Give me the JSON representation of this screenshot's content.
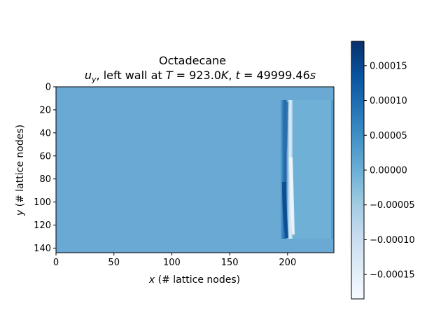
{
  "chart_data": {
    "type": "heatmap",
    "title": {
      "line1": "Octadecane",
      "line2_var": "u",
      "line2_sub": "y",
      "line2_mid": ", left wall at ",
      "line2_T_sym": "T",
      "line2_T_val": " = 923.0",
      "line2_T_unit": "K",
      "line2_t_sym": "t",
      "line2_t_val": " = 49999.46",
      "line2_t_unit": "s"
    },
    "xlabel": {
      "var": "x",
      "text": " (# lattice nodes)"
    },
    "ylabel": {
      "var": "y",
      "text": " (# lattice nodes)"
    },
    "xlim": [
      0,
      240
    ],
    "ylim": [
      144,
      0
    ],
    "xticks": [
      0,
      50,
      100,
      150,
      200
    ],
    "yticks": [
      0,
      20,
      40,
      60,
      80,
      100,
      120,
      140
    ],
    "colorbar": {
      "colormap": "Blues",
      "vmin": -0.000185,
      "vmax": 0.000185,
      "ticks": [
        0.00015,
        0.0001,
        5e-05,
        0.0,
        -5e-05,
        -0.0001,
        -0.00015
      ],
      "tick_labels": [
        "0.00015",
        "0.00010",
        "0.00005",
        "0.00000",
        "−0.00005",
        "−0.00010",
        "−0.00015"
      ]
    },
    "field_summary": {
      "background_value": 0.0,
      "interface_x_range": [
        195,
        205
      ],
      "interface_y_range": [
        12,
        130
      ],
      "liquid_region_x_range": [
        205,
        240
      ],
      "liquid_region_value": 2e-05
    }
  }
}
